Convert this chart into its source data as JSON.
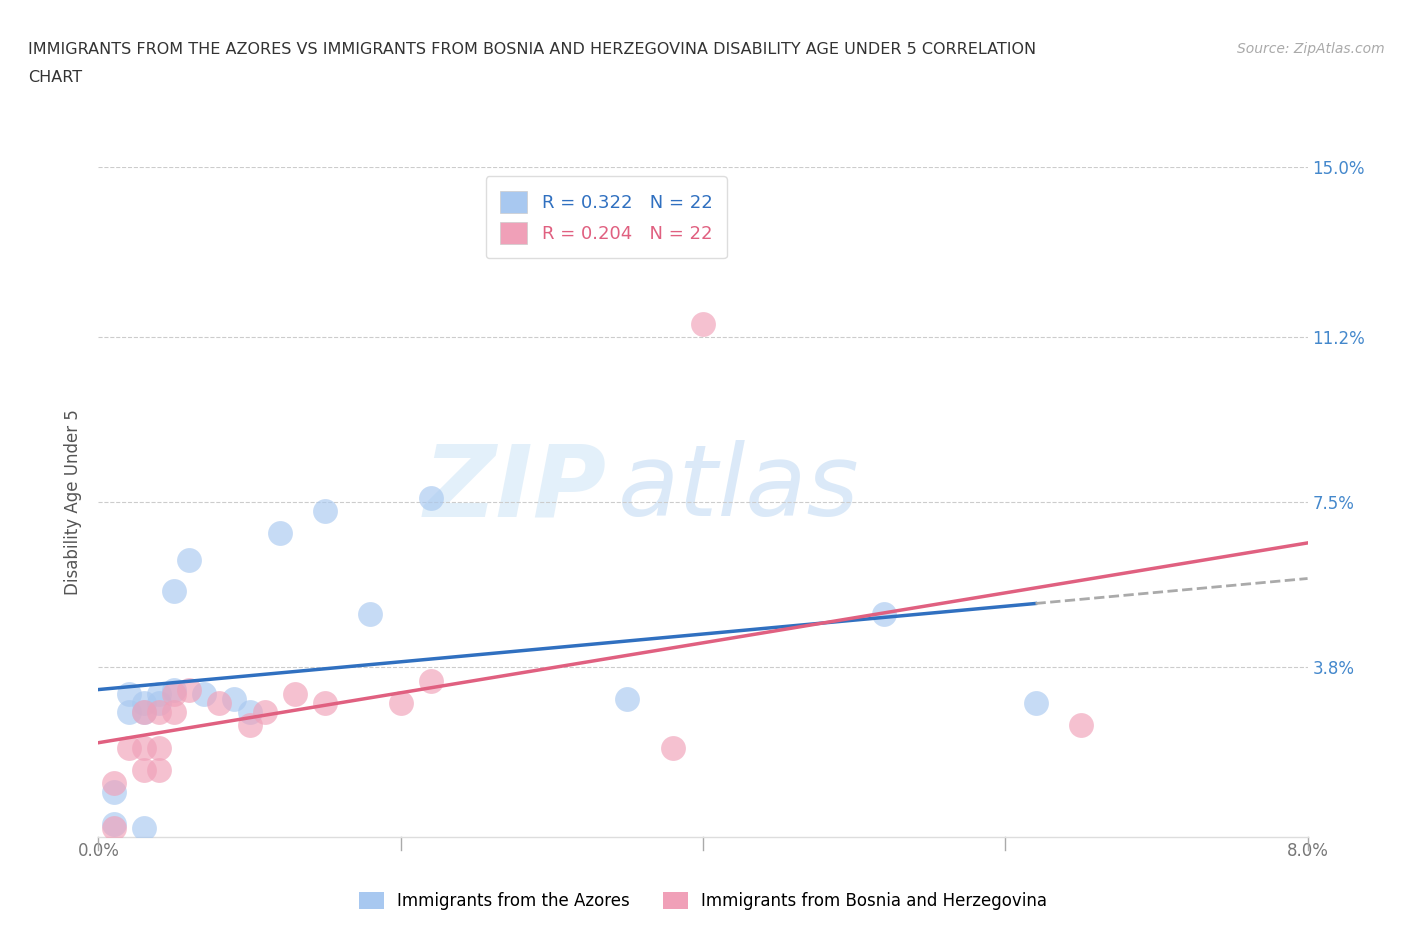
{
  "title_line1": "IMMIGRANTS FROM THE AZORES VS IMMIGRANTS FROM BOSNIA AND HERZEGOVINA DISABILITY AGE UNDER 5 CORRELATION",
  "title_line2": "CHART",
  "source": "Source: ZipAtlas.com",
  "ylabel": "Disability Age Under 5",
  "legend_label_blue": "Immigrants from the Azores",
  "legend_label_pink": "Immigrants from Bosnia and Herzegovina",
  "R_blue": "0.322",
  "N_blue": "22",
  "R_pink": "0.204",
  "N_pink": "22",
  "xmin": 0.0,
  "xmax": 0.08,
  "ymin": 0.0,
  "ymax": 0.15,
  "yticks": [
    0.0,
    0.038,
    0.075,
    0.112,
    0.15
  ],
  "ytick_labels": [
    "",
    "3.8%",
    "7.5%",
    "11.2%",
    "15.0%"
  ],
  "xticks": [
    0.0,
    0.02,
    0.04,
    0.06,
    0.08
  ],
  "xtick_labels": [
    "0.0%",
    "",
    "",
    "",
    "8.0%"
  ],
  "color_blue": "#A8C8F0",
  "color_pink": "#F0A0B8",
  "color_line_blue": "#3070C0",
  "color_line_pink": "#E06080",
  "color_line_dashed": "#AAAAAA",
  "watermark_zip": "ZIP",
  "watermark_atlas": "atlas",
  "blue_x": [
    0.001,
    0.001,
    0.002,
    0.002,
    0.003,
    0.003,
    0.003,
    0.004,
    0.004,
    0.005,
    0.005,
    0.006,
    0.007,
    0.009,
    0.01,
    0.012,
    0.015,
    0.018,
    0.022,
    0.035,
    0.052,
    0.062
  ],
  "blue_y": [
    0.003,
    0.01,
    0.028,
    0.032,
    0.028,
    0.03,
    0.002,
    0.03,
    0.032,
    0.033,
    0.055,
    0.062,
    0.032,
    0.031,
    0.028,
    0.068,
    0.073,
    0.05,
    0.076,
    0.031,
    0.05,
    0.03
  ],
  "pink_x": [
    0.001,
    0.001,
    0.002,
    0.003,
    0.003,
    0.003,
    0.004,
    0.004,
    0.004,
    0.005,
    0.005,
    0.006,
    0.008,
    0.01,
    0.011,
    0.013,
    0.015,
    0.02,
    0.022,
    0.038,
    0.065,
    0.04
  ],
  "pink_y": [
    0.002,
    0.012,
    0.02,
    0.015,
    0.02,
    0.028,
    0.015,
    0.02,
    0.028,
    0.028,
    0.032,
    0.033,
    0.03,
    0.025,
    0.028,
    0.032,
    0.03,
    0.03,
    0.035,
    0.02,
    0.025,
    0.115
  ],
  "background_color": "#FFFFFF",
  "grid_color": "#CCCCCC"
}
